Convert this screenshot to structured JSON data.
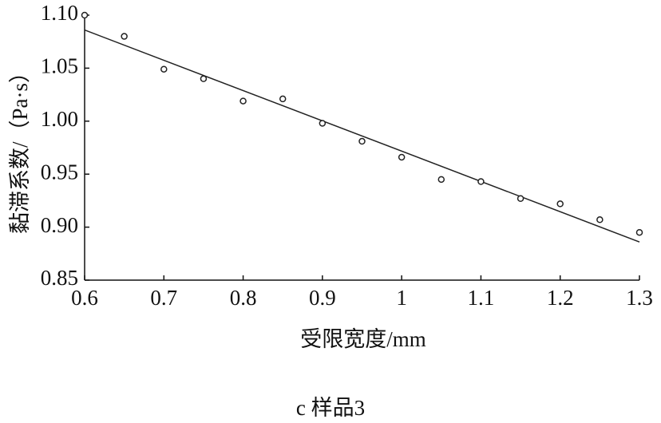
{
  "chart_data": {
    "type": "scatter",
    "y_label": "黏滞系数/（Pa·s）",
    "x_label": "受限宽度/mm",
    "caption": "c 样品3",
    "x": [
      0.6,
      0.65,
      0.7,
      0.75,
      0.8,
      0.85,
      0.9,
      0.95,
      1.0,
      1.05,
      1.1,
      1.15,
      1.2,
      1.25,
      1.3
    ],
    "values": [
      1.1,
      1.08,
      1.049,
      1.04,
      1.019,
      1.021,
      0.998,
      0.981,
      0.966,
      0.945,
      0.943,
      0.927,
      0.922,
      0.907,
      0.895
    ],
    "color": "#222222",
    "fit_line": {
      "x": [
        0.6,
        1.3
      ],
      "values": [
        1.086,
        0.886
      ],
      "color": "#222222"
    },
    "xlim": [
      0.6,
      1.3
    ],
    "xticks": [
      0.6,
      0.7,
      0.8,
      0.9,
      1,
      1.1,
      1.2,
      1.3
    ],
    "ylim": [
      0.85,
      1.1
    ],
    "yticks": [
      {
        "value": 1.1,
        "label": "1.10"
      },
      1.05,
      {
        "value": 1.0,
        "label": "1.00"
      },
      0.95,
      {
        "value": 0.9,
        "label": "0.90"
      },
      0.85
    ]
  }
}
